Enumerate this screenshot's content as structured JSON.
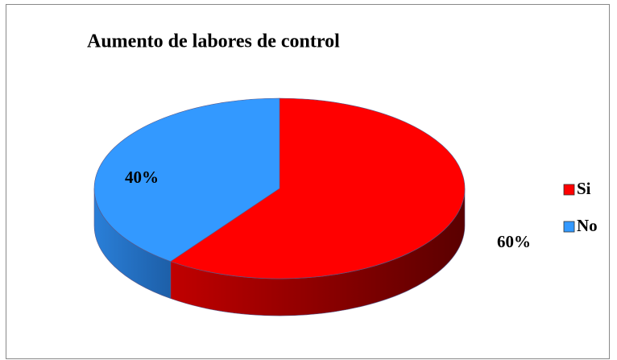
{
  "chart_data": {
    "type": "pie",
    "title": "Aumento de labores de control",
    "categories": [
      "Si",
      "No"
    ],
    "values": [
      60,
      40
    ],
    "value_labels": [
      "60%",
      "40%"
    ],
    "colors": [
      "#ff0000",
      "#3399ff"
    ],
    "legend": "right"
  }
}
